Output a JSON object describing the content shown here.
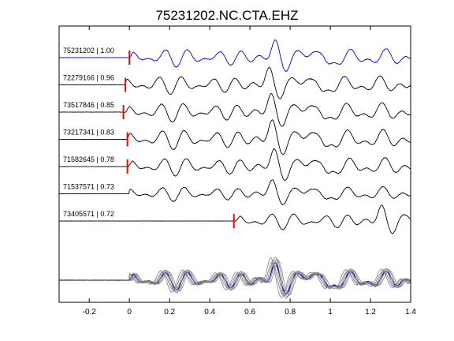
{
  "figure": {
    "title": "75231202.NC.CTA.EHZ"
  },
  "chart_data": {
    "type": "line",
    "title": "75231202.NC.CTA.EHZ",
    "xlabel": "",
    "ylabel": "",
    "xlim": [
      -0.35,
      1.4
    ],
    "x_ticks": [
      -0.2,
      0,
      0.2,
      0.4,
      0.6,
      0.8,
      1,
      1.2,
      1.4
    ],
    "x_tick_labels": [
      "-0.2",
      "0",
      "0.2",
      "0.4",
      "0.6",
      "0.8",
      "1",
      "1.2",
      "1.4"
    ],
    "grid": false,
    "colors": {
      "reference": "#0000cc",
      "other": "#000000",
      "stack": "#808080",
      "pick": "#ff0000"
    },
    "series": [
      {
        "name": "75231202 | 1.00",
        "id": "75231202",
        "correlation": 1.0,
        "color": "#0000cc",
        "pick_time": 0.0,
        "onset": 0.0,
        "scale": 1.0,
        "phase": 0.0,
        "noise_seed": 1
      },
      {
        "name": "72279166 | 0.96",
        "id": "72279166",
        "correlation": 0.96,
        "color": "#000000",
        "pick_time": -0.02,
        "onset": -0.02,
        "scale": 1.0,
        "phase": 0.01,
        "noise_seed": 2
      },
      {
        "name": "73517846 | 0.85",
        "id": "73517846",
        "correlation": 0.85,
        "color": "#000000",
        "pick_time": -0.03,
        "onset": -0.03,
        "scale": 1.05,
        "phase": -0.01,
        "noise_seed": 3
      },
      {
        "name": "73217341 | 0.83",
        "id": "73217341",
        "correlation": 0.83,
        "color": "#000000",
        "pick_time": -0.01,
        "onset": -0.01,
        "scale": 1.1,
        "phase": 0.005,
        "noise_seed": 4
      },
      {
        "name": "71582645 | 0.78",
        "id": "71582645",
        "correlation": 0.78,
        "color": "#000000",
        "pick_time": -0.01,
        "onset": -0.01,
        "scale": 1.0,
        "phase": -0.005,
        "noise_seed": 5
      },
      {
        "name": "71537571 | 0.73",
        "id": "71537571",
        "correlation": 0.73,
        "color": "#000000",
        "pick_time": null,
        "onset": 0.0,
        "scale": 0.8,
        "phase": 0.015,
        "noise_seed": 6
      },
      {
        "name": "73405571 | 0.72",
        "id": "73405571",
        "correlation": 0.72,
        "color": "#000000",
        "pick_time": 0.52,
        "onset": 0.53,
        "scale": 0.9,
        "phase": 0.0,
        "noise_seed": 7
      }
    ]
  }
}
